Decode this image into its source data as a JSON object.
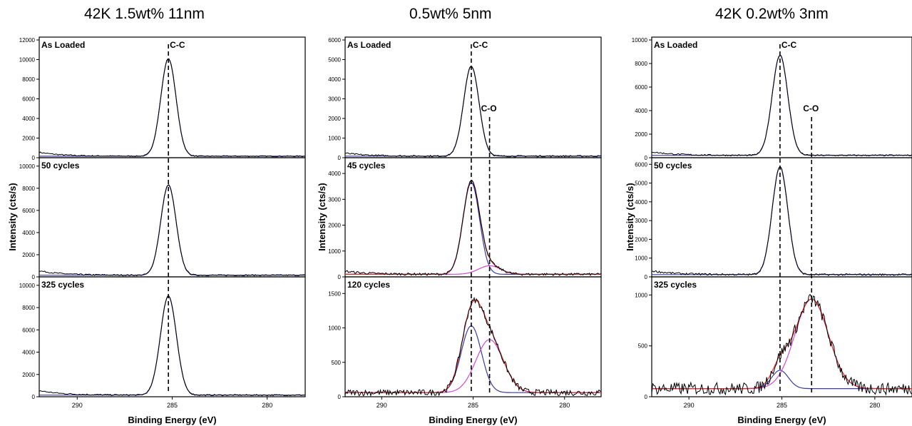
{
  "chart_data": [
    {
      "type": "line",
      "title": "42K 1.5wt% 11nm",
      "xlabel": "Binding Energy (eV)",
      "ylabel": "Intensity (cts/s)",
      "xlim": [
        292,
        278
      ],
      "xticks": [
        290,
        285,
        280
      ],
      "marker_x": 285.2,
      "peak_labels": [
        {
          "text": "C-C",
          "x": 285.2,
          "panel": 0
        }
      ],
      "panels": [
        {
          "label": "As Loaded",
          "ylim": [
            0,
            12000
          ],
          "yticks": [
            0,
            2000,
            4000,
            6000,
            8000,
            10000,
            12000
          ],
          "baseline": 150,
          "left_bump": 400,
          "peaks": [
            {
              "center": 285.2,
              "height": 9950,
              "sigma": 0.4,
              "color": "#3b3b9e"
            }
          ],
          "noise": 60
        },
        {
          "label": "50 cycles",
          "ylim": [
            0,
            10500
          ],
          "yticks": [
            0,
            2000,
            4000,
            6000,
            8000,
            10000
          ],
          "baseline": 150,
          "left_bump": 400,
          "peaks": [
            {
              "center": 285.2,
              "height": 8150,
              "sigma": 0.4,
              "color": "#3b3b9e"
            }
          ],
          "noise": 60
        },
        {
          "label": "325 cycles",
          "ylim": [
            0,
            10500
          ],
          "yticks": [
            0,
            2000,
            4000,
            6000,
            8000,
            10000
          ],
          "baseline": 150,
          "left_bump": 400,
          "peaks": [
            {
              "center": 285.2,
              "height": 8900,
              "sigma": 0.42,
              "color": "#3b3b9e"
            }
          ],
          "noise": 60
        }
      ]
    },
    {
      "type": "line",
      "title": "0.5wt% 5nm",
      "xlabel": "Binding Energy (eV)",
      "ylabel": "Intensity (cts/s)",
      "xlim": [
        292,
        278
      ],
      "xticks": [
        290,
        285,
        280
      ],
      "markers": [
        284.1,
        285.1
      ],
      "peak_labels": [
        {
          "text": "C-C",
          "x": 285.1,
          "panel": 0
        },
        {
          "text": "C-O",
          "x": 284.1,
          "panel": 0
        }
      ],
      "panels": [
        {
          "label": "As Loaded",
          "ylim": [
            0,
            6000
          ],
          "yticks": [
            0,
            1000,
            2000,
            3000,
            4000,
            5000,
            6000
          ],
          "baseline": 80,
          "left_bump": 150,
          "peaks": [
            {
              "center": 285.1,
              "height": 4580,
              "sigma": 0.42,
              "color": "#3b3b9e"
            }
          ],
          "noise": 40
        },
        {
          "label": "45 cycles",
          "ylim": [
            0,
            4500
          ],
          "yticks": [
            0,
            1000,
            2000,
            3000,
            4000
          ],
          "baseline": 100,
          "left_bump": 120,
          "peaks": [
            {
              "center": 285.1,
              "height": 3550,
              "sigma": 0.45,
              "color": "#3b3b9e"
            },
            {
              "center": 284.1,
              "height": 330,
              "sigma": 0.6,
              "color": "#d04ad0"
            }
          ],
          "noise": 45
        },
        {
          "label": "120 cycles",
          "ylim": [
            0,
            1700
          ],
          "yticks": [
            0,
            500,
            1000,
            1500
          ],
          "baseline": 60,
          "left_bump": 0,
          "peaks": [
            {
              "center": 285.1,
              "height": 970,
              "sigma": 0.55,
              "color": "#3b3b9e"
            },
            {
              "center": 284.1,
              "height": 770,
              "sigma": 0.75,
              "color": "#d04ad0"
            }
          ],
          "noise": 45
        }
      ]
    },
    {
      "type": "line",
      "title": "42K 0.2wt% 3nm",
      "xlabel": "Binding Energy (eV)",
      "ylabel": "Intensity (cts/s)",
      "xlim": [
        292,
        278
      ],
      "xticks": [
        290,
        285,
        280
      ],
      "markers": [
        283.4,
        285.1
      ],
      "peak_labels": [
        {
          "text": "C-C",
          "x": 285.1,
          "panel": 0
        },
        {
          "text": "C-O",
          "x": 283.4,
          "panel": 0
        }
      ],
      "panels": [
        {
          "label": "As Loaded",
          "ylim": [
            0,
            10000
          ],
          "yticks": [
            0,
            2000,
            4000,
            6000,
            8000,
            10000
          ],
          "baseline": 200,
          "left_bump": 300,
          "peaks": [
            {
              "center": 285.1,
              "height": 8500,
              "sigma": 0.42,
              "color": "#3b3b9e"
            }
          ],
          "noise": 60
        },
        {
          "label": "50 cycles",
          "ylim": [
            0,
            6200
          ],
          "yticks": [
            0,
            1000,
            2000,
            3000,
            4000,
            5000,
            6000
          ],
          "baseline": 120,
          "left_bump": 200,
          "peaks": [
            {
              "center": 285.1,
              "height": 5750,
              "sigma": 0.42,
              "color": "#3b3b9e"
            }
          ],
          "noise": 50
        },
        {
          "label": "325 cycles",
          "ylim": [
            0,
            1150
          ],
          "yticks": [
            0,
            500,
            1000
          ],
          "baseline": 80,
          "left_bump": 0,
          "peaks": [
            {
              "center": 285.1,
              "height": 180,
              "sigma": 0.45,
              "color": "#3b3b9e"
            },
            {
              "center": 283.4,
              "height": 880,
              "sigma": 0.9,
              "color": "#d04ad0"
            }
          ],
          "noise": 60
        }
      ]
    }
  ]
}
